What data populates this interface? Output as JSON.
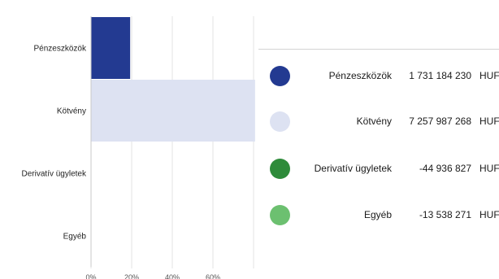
{
  "chart_data": {
    "type": "bar",
    "orientation": "horizontal",
    "categories": [
      "Pénzeszközök",
      "Kötvény",
      "Derivatív ügyletek",
      "Egyéb"
    ],
    "values": [
      19.26,
      80.74,
      -0.5,
      -0.15
    ],
    "colors": [
      "#233a91",
      "#dde2f2",
      "#2e8b3a",
      "#6cc070"
    ],
    "x_ticks": [
      "0%",
      "20%",
      "40%",
      "60%",
      "..."
    ],
    "xlim": [
      0,
      80
    ],
    "grid": true,
    "legend_position": "right"
  },
  "legend": {
    "items": [
      {
        "name": "Pénzeszközök",
        "amount": "1 731 184 230",
        "currency": "HUF",
        "color": "#233a91"
      },
      {
        "name": "Kötvény",
        "amount": "7 257 987 268",
        "currency": "HUF",
        "color": "#dde2f2"
      },
      {
        "name": "Derivatív ügyletek",
        "amount": "-44 936 827",
        "currency": "HUF",
        "color": "#2e8b3a"
      },
      {
        "name": "Egyéb",
        "amount": "-13 538 271",
        "currency": "HUF",
        "color": "#6cc070"
      }
    ]
  }
}
